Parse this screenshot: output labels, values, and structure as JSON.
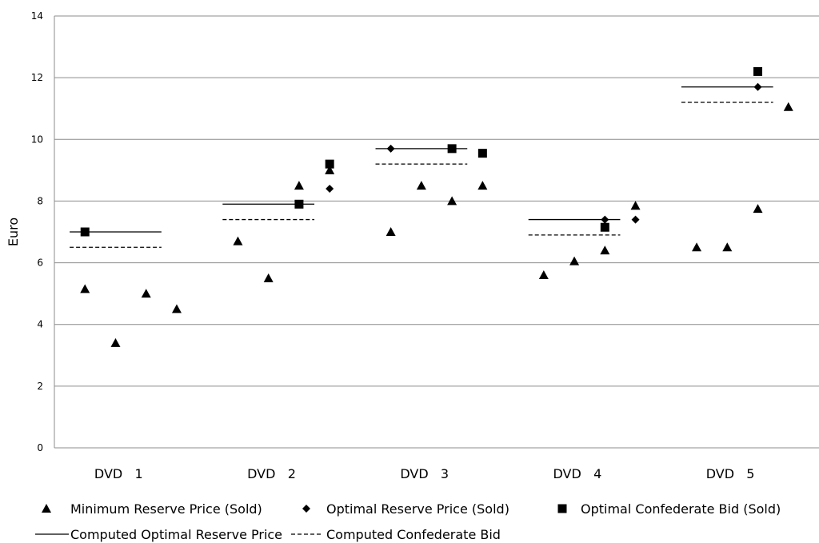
{
  "chart_data": {
    "type": "scatter",
    "ylabel": "Euro",
    "xlabel": "",
    "ylim": [
      0,
      14
    ],
    "yticks": [
      0,
      2,
      4,
      6,
      8,
      10,
      12,
      14
    ],
    "grid": "horizontal",
    "legend_position": "bottom",
    "groups": [
      {
        "label": "DVD   1",
        "num": "1"
      },
      {
        "label": "DVD   2",
        "num": "2"
      },
      {
        "label": "DVD   3",
        "num": "3"
      },
      {
        "label": "DVD   4",
        "num": "4"
      },
      {
        "label": "DVD   5",
        "num": "5"
      }
    ],
    "slots_per_group": 4,
    "series": [
      {
        "name": "Minimum Reserve Price (Sold)",
        "marker": "triangle",
        "points": [
          {
            "group": 1,
            "slot": 1,
            "y": 5.15
          },
          {
            "group": 1,
            "slot": 2,
            "y": 3.4
          },
          {
            "group": 1,
            "slot": 3,
            "y": 5.0
          },
          {
            "group": 1,
            "slot": 4,
            "y": 4.5
          },
          {
            "group": 2,
            "slot": 1,
            "y": 6.7
          },
          {
            "group": 2,
            "slot": 2,
            "y": 5.5
          },
          {
            "group": 2,
            "slot": 3,
            "y": 8.5
          },
          {
            "group": 2,
            "slot": 4,
            "y": 9.0
          },
          {
            "group": 3,
            "slot": 1,
            "y": 7.0
          },
          {
            "group": 3,
            "slot": 2,
            "y": 8.5
          },
          {
            "group": 3,
            "slot": 3,
            "y": 8.0
          },
          {
            "group": 3,
            "slot": 4,
            "y": 8.5
          },
          {
            "group": 4,
            "slot": 1,
            "y": 5.6
          },
          {
            "group": 4,
            "slot": 2,
            "y": 6.05
          },
          {
            "group": 4,
            "slot": 3,
            "y": 6.4
          },
          {
            "group": 4,
            "slot": 4,
            "y": 7.85
          },
          {
            "group": 5,
            "slot": 1,
            "y": 6.5
          },
          {
            "group": 5,
            "slot": 2,
            "y": 6.5
          },
          {
            "group": 5,
            "slot": 3,
            "y": 7.75
          },
          {
            "group": 5,
            "slot": 4,
            "y": 11.05
          }
        ]
      },
      {
        "name": "Optimal Reserve Price (Sold)",
        "marker": "diamond",
        "points": [
          {
            "group": 2,
            "slot": 4,
            "y": 8.4
          },
          {
            "group": 3,
            "slot": 1,
            "y": 9.7
          },
          {
            "group": 4,
            "slot": 3,
            "y": 7.4
          },
          {
            "group": 4,
            "slot": 4,
            "y": 7.4
          },
          {
            "group": 5,
            "slot": 3,
            "y": 11.7
          }
        ]
      },
      {
        "name": "Optimal Confederate Bid (Sold)",
        "marker": "square",
        "points": [
          {
            "group": 1,
            "slot": 1,
            "y": 7.0
          },
          {
            "group": 2,
            "slot": 3,
            "y": 7.9
          },
          {
            "group": 2,
            "slot": 4,
            "y": 9.2
          },
          {
            "group": 3,
            "slot": 3,
            "y": 9.7
          },
          {
            "group": 3,
            "slot": 4,
            "y": 9.55
          },
          {
            "group": 4,
            "slot": 3,
            "y": 7.15
          },
          {
            "group": 5,
            "slot": 3,
            "y": 12.2
          }
        ]
      }
    ],
    "lines": [
      {
        "name": "Computed Optimal Reserve Price",
        "style": "solid",
        "values": [
          7.0,
          7.9,
          9.7,
          7.4,
          11.7
        ]
      },
      {
        "name": "Computed Confederate Bid",
        "style": "dashed",
        "values": [
          6.5,
          7.4,
          9.2,
          6.9,
          11.2
        ]
      }
    ]
  }
}
